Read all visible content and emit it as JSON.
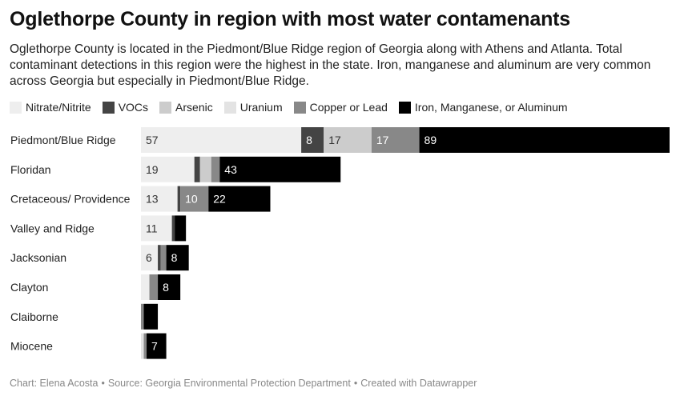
{
  "title": "Oglethorpe County in region with most water contamenants",
  "subtitle": "Oglethorpe County is located in the Piedmont/Blue Ridge region of Georgia along with Athens and Atlanta. Total contaminant detections in this region were the highest in the state. Iron, manganese and aluminum are very common across Georgia but especially in Piedmont/Blue Ridge.",
  "footer": {
    "chart_by": "Chart: Elena Acosta",
    "source": "Source: Georgia Environmental Protection Department",
    "tool": "Created with Datawrapper"
  },
  "chart_data": {
    "type": "bar",
    "orientation": "horizontal",
    "stacked": true,
    "categories": [
      "Piedmont/Blue Ridge",
      "Floridan",
      "Cretaceous/ Providence",
      "Valley and Ridge",
      "Jacksonian",
      "Clayton",
      "Claiborne",
      "Miocene"
    ],
    "series": [
      {
        "name": "Nitrate/Nitrite",
        "color": "#eeeeee",
        "label_color": "#333333",
        "values": [
          57,
          19,
          13,
          11,
          6,
          3,
          0,
          0
        ]
      },
      {
        "name": "VOCs",
        "color": "#444444",
        "label_color": "#ffffff",
        "values": [
          8,
          2,
          1,
          1,
          1,
          0,
          0,
          0
        ]
      },
      {
        "name": "Arsenic",
        "color": "#cccccc",
        "label_color": "#333333",
        "values": [
          17,
          4,
          0,
          0,
          0,
          0,
          0,
          0
        ]
      },
      {
        "name": "Uranium",
        "color": "#e3e3e3",
        "label_color": "#333333",
        "values": [
          0,
          0,
          0,
          0,
          0,
          0,
          0,
          1
        ]
      },
      {
        "name": "Copper or Lead",
        "color": "#888888",
        "label_color": "#ffffff",
        "values": [
          17,
          3,
          10,
          0,
          2,
          3,
          1,
          1
        ]
      },
      {
        "name": "Iron, Manganese, or Aluminum",
        "color": "#000000",
        "label_color": "#ffffff",
        "values": [
          89,
          43,
          22,
          4,
          8,
          8,
          5,
          7
        ]
      }
    ],
    "shown_labels": [
      [
        "57",
        "8",
        "17",
        "",
        "17",
        "89"
      ],
      [
        "19",
        "",
        "",
        "",
        "",
        "43"
      ],
      [
        "13",
        "",
        "",
        "",
        "10",
        "22"
      ],
      [
        "11",
        "",
        "",
        "",
        "",
        ""
      ],
      [
        "6",
        "",
        "",
        "",
        "",
        "8"
      ],
      [
        "",
        "",
        "",
        "",
        "",
        "8"
      ],
      [
        "",
        "",
        "",
        "",
        "",
        ""
      ],
      [
        "",
        "",
        "",
        "",
        "",
        "7"
      ]
    ],
    "legend_position": "top",
    "grid": false
  }
}
